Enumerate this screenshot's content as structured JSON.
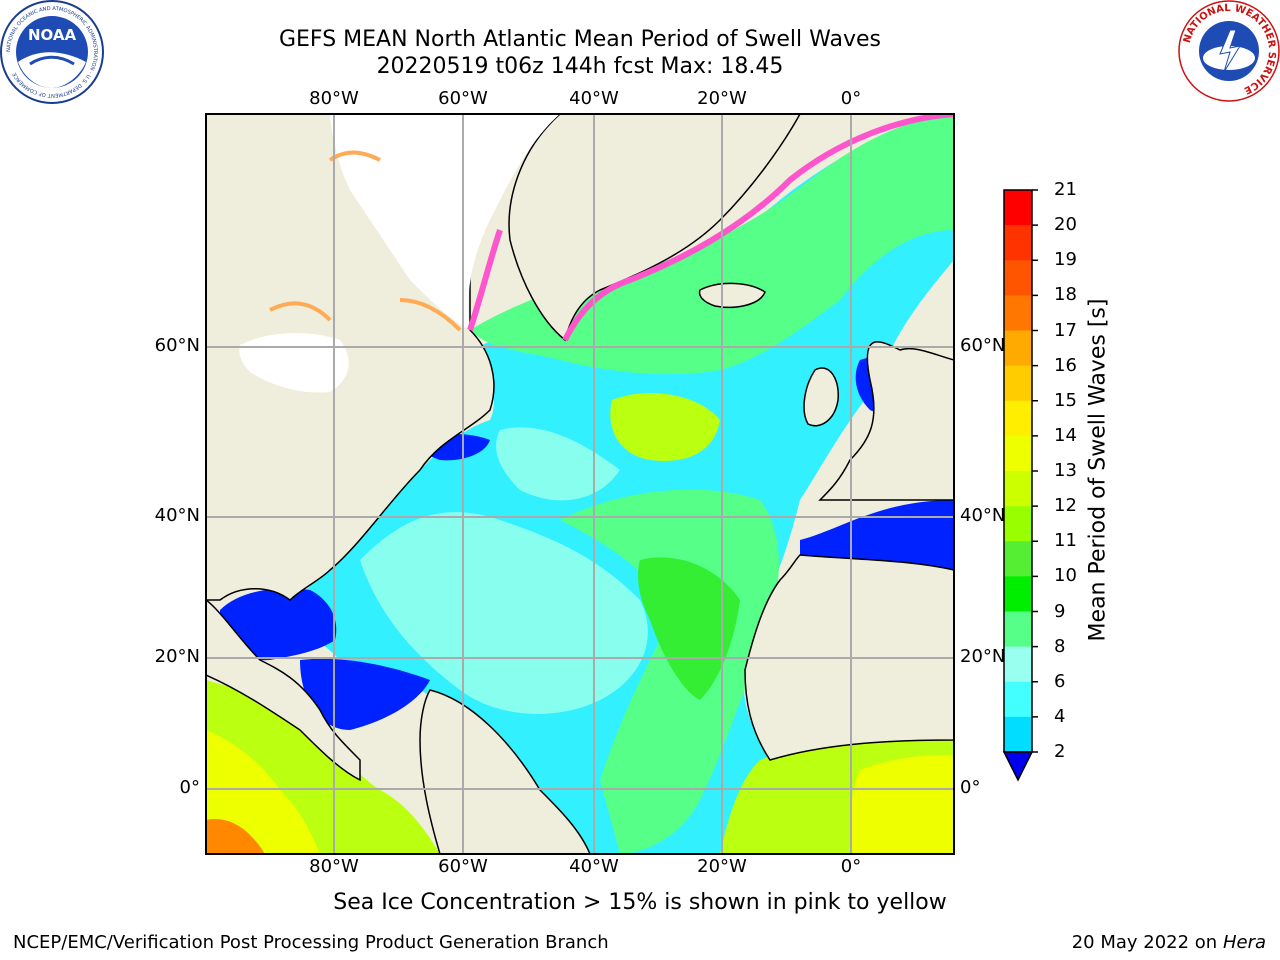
{
  "header": {
    "title_line1": "GEFS MEAN North Atlantic Mean Period of Swell Waves",
    "title_line2": "20220519 t06z 144h fcst   Max: 18.45"
  },
  "map": {
    "lon_labels": [
      "80°W",
      "60°W",
      "40°W",
      "20°W",
      "0°"
    ],
    "lat_labels": [
      "60°N",
      "40°N",
      "20°N",
      "0°"
    ],
    "colors": {
      "land": "#efeddc",
      "ice_pink": "#ff55cc",
      "ice_orange": "#ffaa55",
      "ice_white": "#ffffff",
      "deep_blue": "#0022ff",
      "cyan": "#33f0ff",
      "light_cyan": "#88ffee",
      "light_green": "#55ff88",
      "green": "#33ee33",
      "yellow_green": "#bbff11",
      "yellow": "#eeff00",
      "orange": "#ff8800"
    }
  },
  "colorbar": {
    "label": "Mean Period of Swell Waves [s]",
    "ticks": [
      "21",
      "20",
      "19",
      "18",
      "17",
      "16",
      "15",
      "14",
      "13",
      "12",
      "11",
      "10",
      "9",
      "8",
      "6",
      "4",
      "2"
    ],
    "colors": [
      "#ff0000",
      "#ff3300",
      "#ff5500",
      "#ff7700",
      "#ffaa00",
      "#ffcc00",
      "#ffee00",
      "#eeff00",
      "#ccff00",
      "#99ff00",
      "#55ee33",
      "#00ee00",
      "#55ff88",
      "#99ffee",
      "#44ffff",
      "#00ddff",
      "#0077ff",
      "#0000ee"
    ]
  },
  "footer": {
    "note": "Sea Ice Concentration > 15% is shown in pink to yellow",
    "credit": "NCEP/EMC/Verification Post Processing Product Generation Branch",
    "date": "20 May 2022 on",
    "machine": "Hera"
  },
  "logos": {
    "noaa_text": "NOAA",
    "noaa_ring": "NATIONAL OCEANIC AND ATMOSPHERIC ADMINISTRATION · U.S. DEPARTMENT OF COMMERCE",
    "nws_ring": "NATIONAL WEATHER SERVICE"
  }
}
